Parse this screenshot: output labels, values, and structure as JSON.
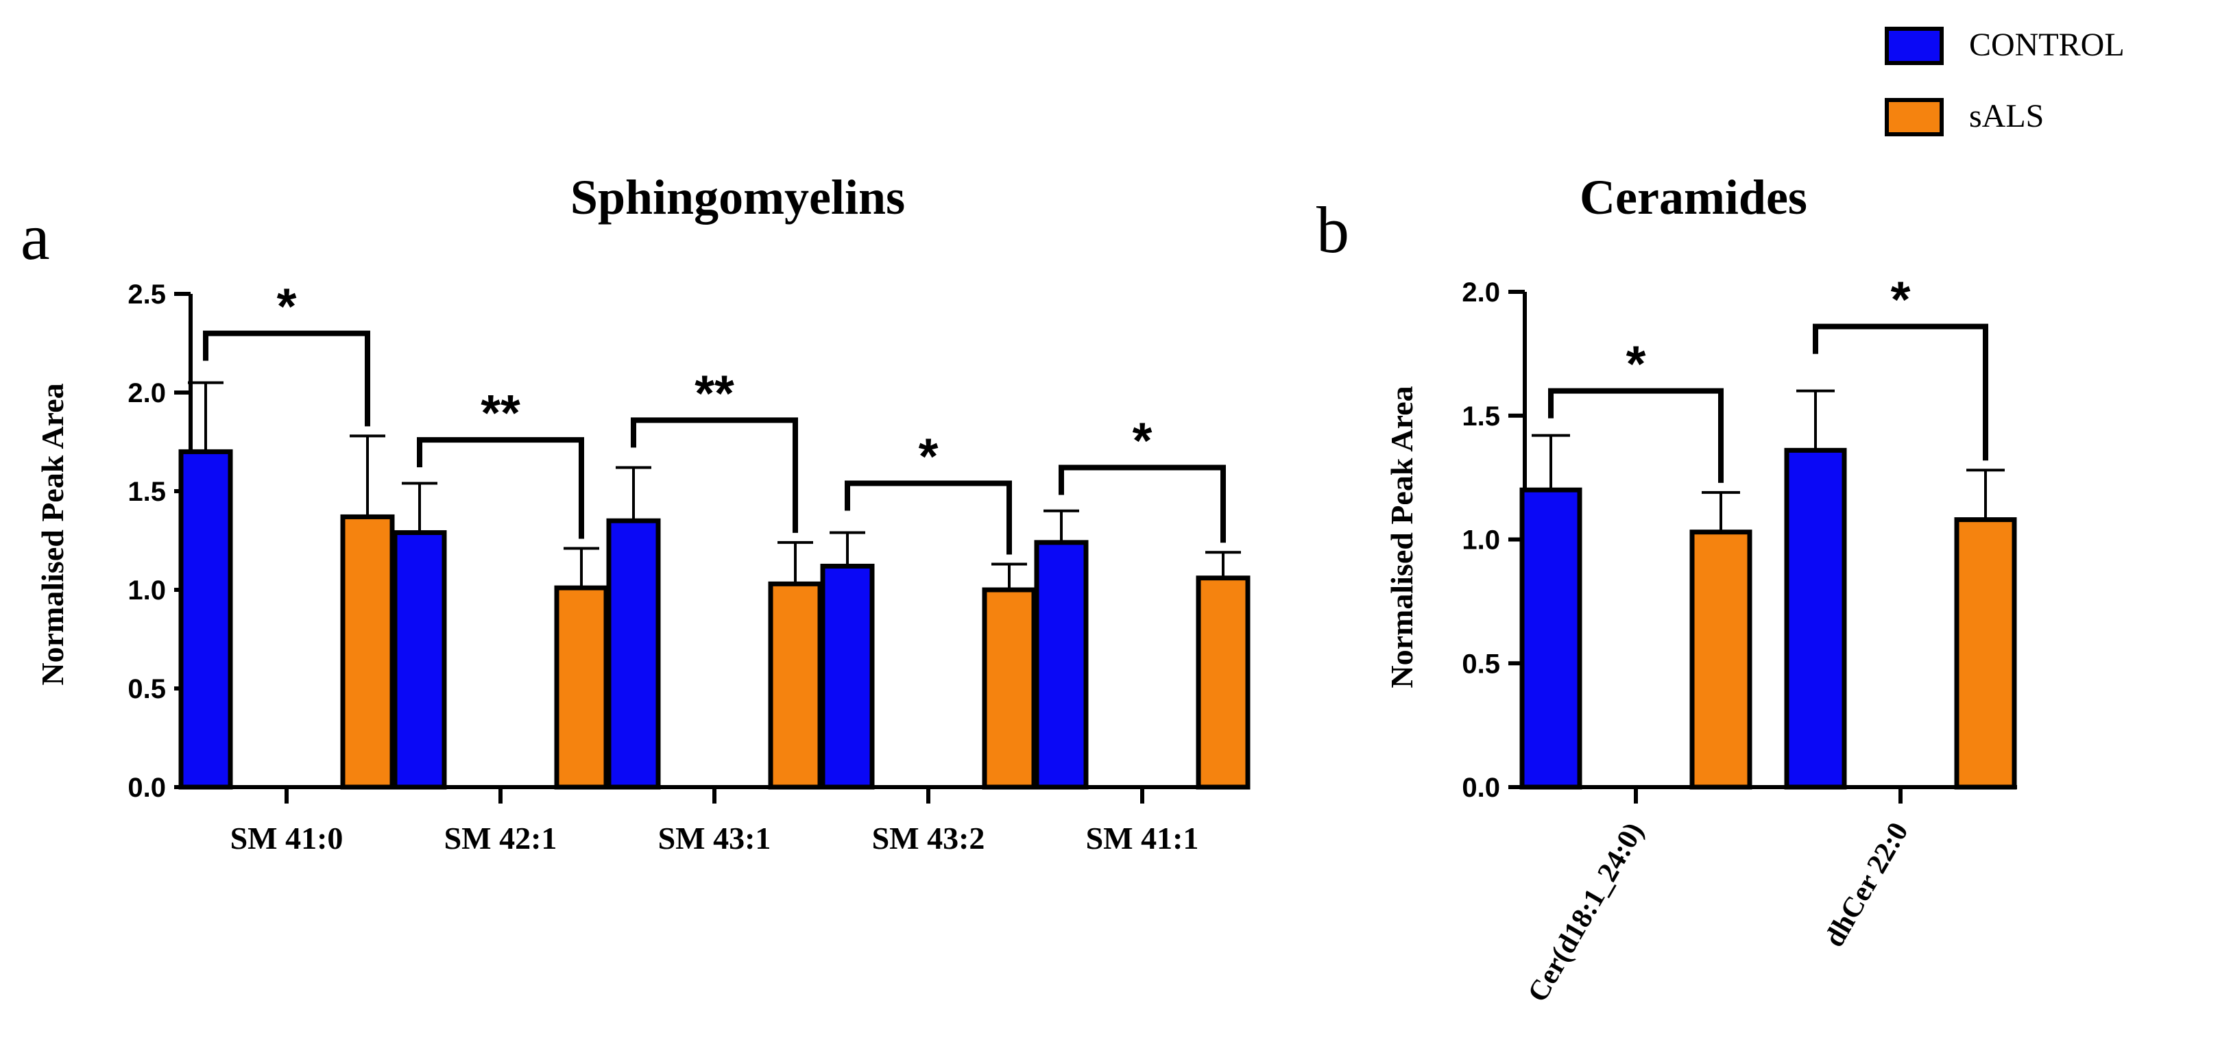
{
  "legend": {
    "items": [
      {
        "label": "CONTROL",
        "color": "#0a08f6"
      },
      {
        "label": "sALS",
        "color": "#f5830f"
      }
    ],
    "placement": "top-right"
  },
  "panel_a": {
    "letter": "a"
  },
  "panel_b": {
    "letter": "b"
  },
  "chart_data": [
    {
      "type": "bar",
      "title": "Sphingomyelins",
      "xlabel": "",
      "ylabel": "Normalised Peak Area",
      "ylim": [
        0,
        2.5
      ],
      "yticks": [
        "0.0",
        "0.5",
        "1.0",
        "1.5",
        "2.0",
        "2.5"
      ],
      "categories": [
        "SM 41:0",
        "SM 42:1",
        "SM 43:1",
        "SM 43:2",
        "SM 41:1"
      ],
      "series": [
        {
          "name": "CONTROL",
          "color": "#0a08f6",
          "values": [
            1.7,
            1.29,
            1.35,
            1.12,
            1.24
          ],
          "errors": [
            0.35,
            0.25,
            0.27,
            0.17,
            0.16
          ]
        },
        {
          "name": "sALS",
          "color": "#f5830f",
          "values": [
            1.37,
            1.01,
            1.03,
            1.0,
            1.06
          ],
          "errors": [
            0.41,
            0.2,
            0.21,
            0.13,
            0.13
          ]
        }
      ],
      "significance": [
        "*",
        "**",
        "**",
        "*",
        "*"
      ],
      "bracket_levels": [
        2.3,
        1.76,
        1.86,
        1.54,
        1.62
      ]
    },
    {
      "type": "bar",
      "title": "Ceramides",
      "xlabel": "",
      "ylabel": "Normalised Peak Area",
      "ylim": [
        0,
        2.0
      ],
      "yticks": [
        "0.0",
        "0.5",
        "1.0",
        "1.5",
        "2.0"
      ],
      "categories": [
        "Cer(d18:1_24:0)",
        "dhCer 22:0"
      ],
      "series": [
        {
          "name": "CONTROL",
          "color": "#0a08f6",
          "values": [
            1.2,
            1.36
          ],
          "errors": [
            0.22,
            0.24
          ]
        },
        {
          "name": "sALS",
          "color": "#f5830f",
          "values": [
            1.03,
            1.08
          ],
          "errors": [
            0.16,
            0.2
          ]
        }
      ],
      "significance": [
        "*",
        "*"
      ],
      "bracket_levels": [
        1.6,
        1.86
      ]
    }
  ]
}
